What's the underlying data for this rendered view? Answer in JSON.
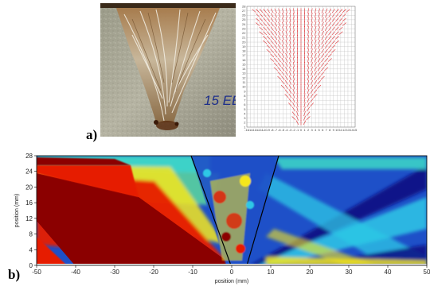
{
  "figure": {
    "panel_a": {
      "label": "a)",
      "photo_marking": "15 EE",
      "grid_x_ticks": [
        "-15",
        "-14",
        "-13",
        "-12",
        "-11",
        "-10",
        "-9",
        "-8",
        "-7",
        "-6",
        "-5",
        "-4",
        "-3",
        "-2",
        "-1",
        "0",
        "1",
        "2",
        "3",
        "4",
        "5",
        "6",
        "7",
        "8",
        "9",
        "10",
        "11",
        "12",
        "13",
        "14",
        "15"
      ],
      "grid_y_ticks": [
        "1",
        "2",
        "3",
        "4",
        "5",
        "6",
        "7",
        "8",
        "9",
        "10",
        "11",
        "12",
        "13",
        "14",
        "15",
        "16",
        "17",
        "18",
        "19",
        "20",
        "21",
        "22",
        "23",
        "24",
        "25",
        "26",
        "27",
        "28"
      ]
    },
    "panel_b": {
      "label": "b)",
      "xlabel": "position (mm)",
      "ylabel": "position (mm)",
      "x_ticks": [
        "-50",
        "-40",
        "-30",
        "-20",
        "-10",
        "0",
        "10",
        "20",
        "30",
        "40",
        "50"
      ],
      "y_ticks": [
        "0",
        "4",
        "8",
        "12",
        "16",
        "20",
        "24",
        "28"
      ],
      "xlim": [
        -50,
        50
      ],
      "ylim": [
        0,
        28
      ]
    },
    "colors": {
      "dark_red": "#8b0000",
      "red": "#e61a00",
      "yellow": "#f5e61e",
      "cyan": "#2ec8e6",
      "blue": "#1e50c8",
      "navy": "#0a0a82"
    }
  }
}
